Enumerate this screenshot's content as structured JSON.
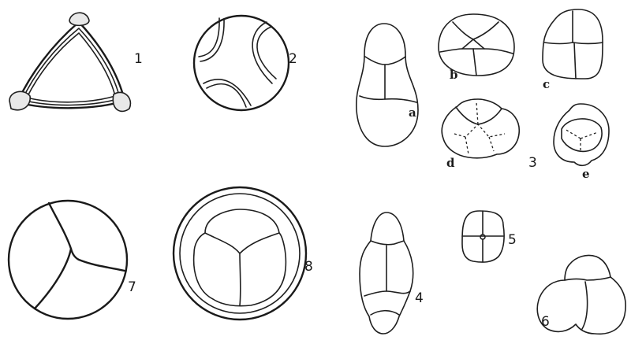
{
  "labels": {
    "fig1": "1",
    "fig2": "2",
    "fig3": "3",
    "fig4": "4",
    "fig5": "5",
    "fig6": "6",
    "fig7": "7",
    "fig8": "8",
    "sub_a": "a",
    "sub_b": "b",
    "sub_c": "c",
    "sub_d": "d",
    "sub_e": "e"
  }
}
